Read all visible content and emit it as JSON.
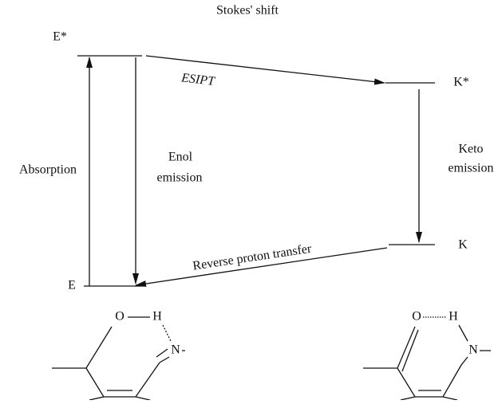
{
  "title": "Stokes' shift",
  "levels": {
    "e_star": "E*",
    "k_star": "K*",
    "k": "K",
    "e": "E"
  },
  "transitions": {
    "esipt": "ESIPT",
    "absorption": "Absorption",
    "enol_emission": [
      "Enol",
      "emission"
    ],
    "keto_emission": [
      "Keto",
      "emission"
    ],
    "reverse": "Reverse proton transfer"
  },
  "molecules": [
    {
      "atoms": [
        "O",
        "H",
        "N"
      ]
    },
    {
      "atoms": [
        "O",
        "H",
        "N"
      ]
    }
  ]
}
